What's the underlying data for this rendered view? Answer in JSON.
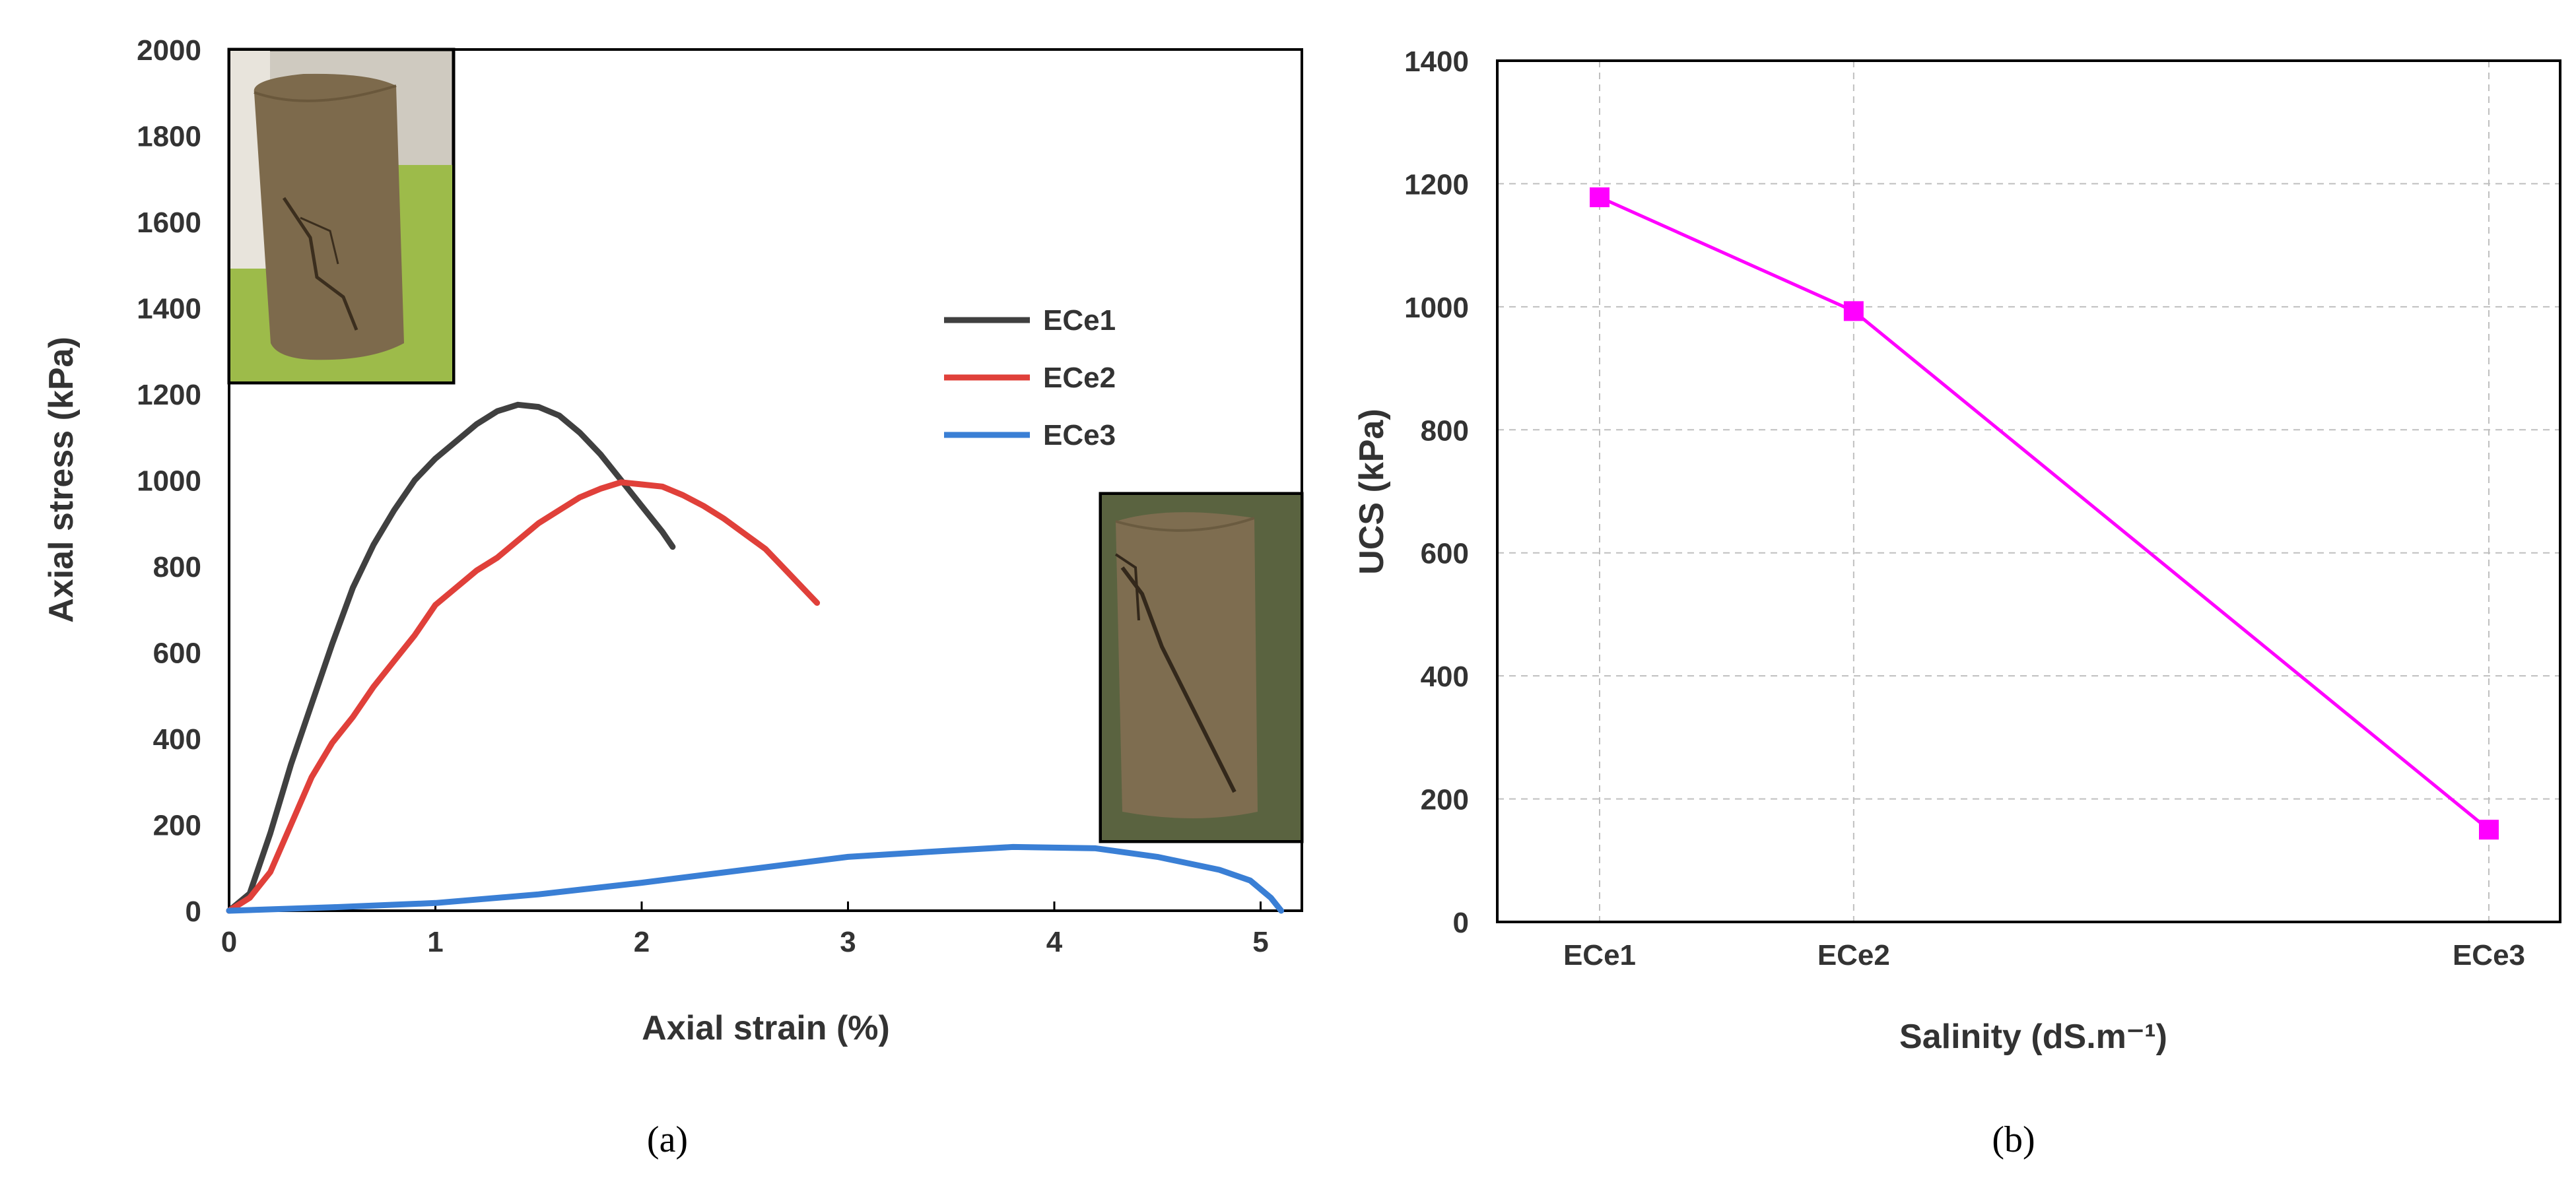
{
  "chart_data": [
    {
      "type": "line",
      "panel_label": "(a)",
      "xlabel": "Axial strain (%)",
      "ylabel": "Axial stress (kPa)",
      "xlim": [
        0,
        5.2
      ],
      "ylim": [
        0,
        2000
      ],
      "xticks": [
        "0",
        "1",
        "2",
        "3",
        "4",
        "5"
      ],
      "yticks": [
        "0",
        "200",
        "400",
        "600",
        "800",
        "1000",
        "1200",
        "1400",
        "1600",
        "1800",
        "2000"
      ],
      "grid": false,
      "legend_position": "right",
      "series": [
        {
          "name": "ECe1",
          "color": "#404040",
          "points": [
            [
              0,
              0
            ],
            [
              0.1,
              40
            ],
            [
              0.2,
              180
            ],
            [
              0.3,
              340
            ],
            [
              0.4,
              480
            ],
            [
              0.5,
              620
            ],
            [
              0.6,
              750
            ],
            [
              0.7,
              850
            ],
            [
              0.8,
              930
            ],
            [
              0.9,
              1000
            ],
            [
              1.0,
              1050
            ],
            [
              1.1,
              1090
            ],
            [
              1.2,
              1130
            ],
            [
              1.3,
              1160
            ],
            [
              1.4,
              1175
            ],
            [
              1.5,
              1170
            ],
            [
              1.6,
              1150
            ],
            [
              1.7,
              1110
            ],
            [
              1.8,
              1060
            ],
            [
              1.9,
              1000
            ],
            [
              2.0,
              940
            ],
            [
              2.1,
              880
            ],
            [
              2.15,
              845
            ]
          ]
        },
        {
          "name": "ECe2",
          "color": "#e0403a",
          "points": [
            [
              0,
              0
            ],
            [
              0.1,
              30
            ],
            [
              0.2,
              90
            ],
            [
              0.3,
              200
            ],
            [
              0.4,
              310
            ],
            [
              0.5,
              390
            ],
            [
              0.6,
              450
            ],
            [
              0.7,
              520
            ],
            [
              0.8,
              580
            ],
            [
              0.9,
              640
            ],
            [
              1.0,
              710
            ],
            [
              1.1,
              750
            ],
            [
              1.2,
              790
            ],
            [
              1.3,
              820
            ],
            [
              1.4,
              860
            ],
            [
              1.5,
              900
            ],
            [
              1.6,
              930
            ],
            [
              1.7,
              960
            ],
            [
              1.8,
              980
            ],
            [
              1.9,
              995
            ],
            [
              2.0,
              990
            ],
            [
              2.1,
              985
            ],
            [
              2.2,
              965
            ],
            [
              2.3,
              940
            ],
            [
              2.4,
              910
            ],
            [
              2.5,
              875
            ],
            [
              2.6,
              840
            ],
            [
              2.7,
              790
            ],
            [
              2.8,
              740
            ],
            [
              2.85,
              715
            ]
          ]
        },
        {
          "name": "ECe3",
          "color": "#3a7fd5",
          "points": [
            [
              0,
              0
            ],
            [
              0.5,
              8
            ],
            [
              1.0,
              18
            ],
            [
              1.5,
              38
            ],
            [
              2.0,
              65
            ],
            [
              2.5,
              95
            ],
            [
              3.0,
              125
            ],
            [
              3.5,
              140
            ],
            [
              3.8,
              148
            ],
            [
              4.2,
              145
            ],
            [
              4.5,
              125
            ],
            [
              4.8,
              95
            ],
            [
              4.95,
              70
            ],
            [
              5.05,
              30
            ],
            [
              5.1,
              0
            ]
          ]
        }
      ]
    },
    {
      "type": "line",
      "panel_label": "(b)",
      "xlabel": "Salinity (dS.m⁻¹)",
      "ylabel": "UCS (kPa)",
      "ylim": [
        0,
        1400
      ],
      "yticks": [
        "0",
        "200",
        "400",
        "600",
        "800",
        "1000",
        "1200",
        "1400"
      ],
      "grid": true,
      "categories": [
        "ECe1",
        "ECe2",
        "ECe3"
      ],
      "category_x": [
        0,
        1,
        3.5
      ],
      "series": [
        {
          "color": "#ff00ff",
          "marker": "square",
          "values": [
            1178,
            993,
            150
          ]
        }
      ]
    }
  ]
}
